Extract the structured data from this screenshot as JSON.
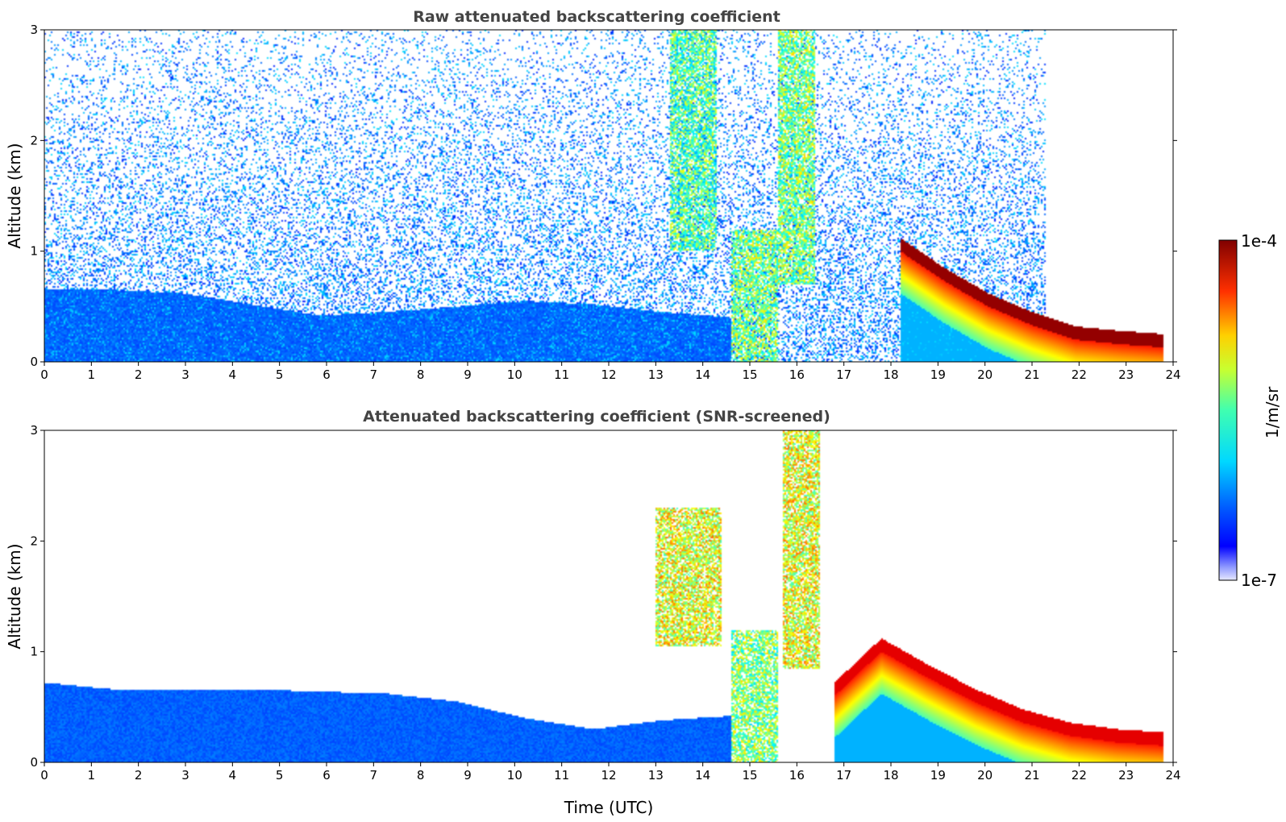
{
  "chart_data": [
    {
      "type": "heatmap",
      "title": "Raw attenuated backscattering coefficient",
      "xlabel": "",
      "ylabel": "Altitude (km)",
      "xlim": [
        0,
        24
      ],
      "ylim": [
        0,
        3
      ],
      "x_ticks": [
        "0",
        "1",
        "2",
        "3",
        "4",
        "5",
        "6",
        "7",
        "8",
        "9",
        "10",
        "11",
        "12",
        "13",
        "14",
        "15",
        "16",
        "17",
        "18",
        "19",
        "20",
        "21",
        "22",
        "23",
        "24"
      ],
      "y_ticks": [
        "0",
        "1",
        "2",
        "3"
      ],
      "colorscale": "jet",
      "features": [
        {
          "kind": "background_noise",
          "start_time": 0,
          "end_time": 21.3,
          "max_altitude": 3.0,
          "level": 0.15
        },
        {
          "kind": "boundary_layer",
          "start_time": 0,
          "end_time": 14.6,
          "top_altitude": [
            0.65,
            0.65,
            0.62,
            0.52,
            0.42,
            0.45,
            0.5,
            0.55,
            0.52,
            0.45,
            0.4
          ],
          "level": 0.22
        },
        {
          "kind": "cloud",
          "start_time": 14.6,
          "end_time": 15.6,
          "bottom_altitude": 0.0,
          "top_altitude": 1.2,
          "level": 0.5
        },
        {
          "kind": "cloud",
          "start_time": 13.3,
          "end_time": 14.3,
          "bottom_altitude": 1.0,
          "top_altitude": 3.0,
          "level": 0.45
        },
        {
          "kind": "cloud",
          "start_time": 15.6,
          "end_time": 16.4,
          "bottom_altitude": 0.7,
          "top_altitude": 3.0,
          "level": 0.5
        },
        {
          "kind": "cloud_layer",
          "start_time": 18.2,
          "end_time": 23.8,
          "top_altitude": [
            1.12,
            0.85,
            0.62,
            0.45,
            0.32,
            0.28,
            0.25
          ],
          "level": 0.98
        }
      ]
    },
    {
      "type": "heatmap",
      "title": "Attenuated backscattering coefficient (SNR-screened)",
      "xlabel": "Time (UTC)",
      "ylabel": "Altitude (km)",
      "xlim": [
        0,
        24
      ],
      "ylim": [
        0,
        3
      ],
      "x_ticks": [
        "0",
        "1",
        "2",
        "3",
        "4",
        "5",
        "6",
        "7",
        "8",
        "9",
        "10",
        "11",
        "12",
        "13",
        "14",
        "15",
        "16",
        "17",
        "18",
        "19",
        "20",
        "21",
        "22",
        "23",
        "24"
      ],
      "y_ticks": [
        "0",
        "1",
        "2",
        "3"
      ],
      "colorscale": "jet",
      "features": [
        {
          "kind": "boundary_layer",
          "start_time": 0,
          "end_time": 14.6,
          "top_altitude": [
            0.72,
            0.66,
            0.66,
            0.66,
            0.64,
            0.62,
            0.55,
            0.4,
            0.3,
            0.38,
            0.42
          ],
          "level": 0.22
        },
        {
          "kind": "cloud",
          "start_time": 14.6,
          "end_time": 15.6,
          "bottom_altitude": 0.0,
          "top_altitude": 1.2,
          "level": 0.5
        },
        {
          "kind": "cloud",
          "start_time": 13.0,
          "end_time": 14.4,
          "bottom_altitude": 1.05,
          "top_altitude": 2.3,
          "level": 0.6
        },
        {
          "kind": "cloud",
          "start_time": 15.7,
          "end_time": 16.5,
          "bottom_altitude": 0.85,
          "top_altitude": 3.0,
          "level": 0.6
        },
        {
          "kind": "cloud_layer",
          "start_time": 16.8,
          "end_time": 23.8,
          "top_altitude": [
            0.72,
            1.12,
            0.88,
            0.66,
            0.48,
            0.36,
            0.3,
            0.27
          ],
          "level": 0.9
        }
      ]
    }
  ],
  "colorbar": {
    "label": "1/m/sr",
    "max_label": "1e-4",
    "min_label": "1e-7"
  }
}
